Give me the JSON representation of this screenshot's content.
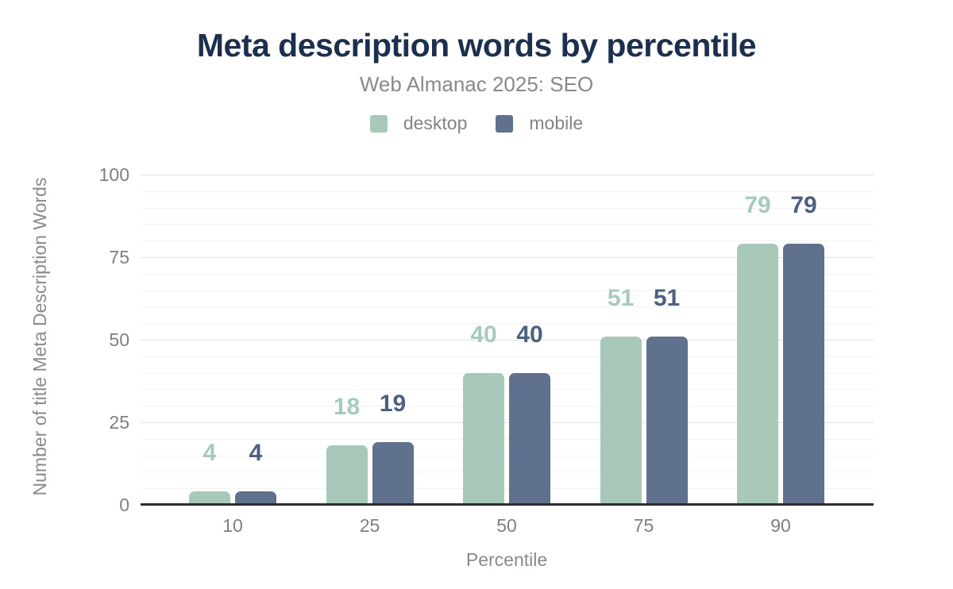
{
  "chart_data": {
    "type": "bar",
    "title": "Meta description words by percentile",
    "subtitle": "Web Almanac 2025: SEO",
    "categories": [
      "10",
      "25",
      "50",
      "75",
      "90"
    ],
    "series": [
      {
        "name": "desktop",
        "color": "#a8c9ba",
        "label_color": "#a6cabb",
        "values": [
          4,
          18,
          40,
          51,
          79
        ]
      },
      {
        "name": "mobile",
        "color": "#5f718d",
        "label_color": "#4e6080",
        "values": [
          4,
          19,
          40,
          51,
          79
        ]
      }
    ],
    "xlabel": "Percentile",
    "ylabel": "Number of title Meta Description Words",
    "ylim": [
      0,
      100
    ],
    "yticks": [
      0,
      25,
      50,
      75,
      100
    ],
    "minor_grid_step": 5,
    "grid": true,
    "legend_position": "top",
    "value_labels": true,
    "axis_line_color": "#2b2b2b",
    "title_color": "#1d2f4e"
  }
}
